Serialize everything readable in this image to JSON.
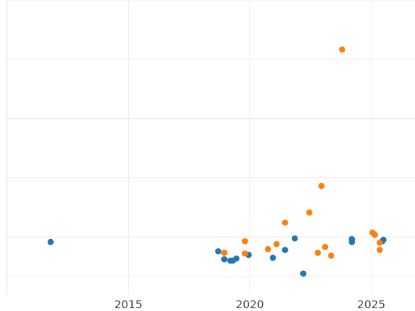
{
  "chart_data": {
    "type": "scatter",
    "title": "",
    "xlabel": "",
    "ylabel": "",
    "xlim": [
      2010.0,
      2026.8
    ],
    "ylim": [
      0,
      410
    ],
    "x_ticks": [
      {
        "value": 2015,
        "label": "2015"
      },
      {
        "value": 2020,
        "label": "2020"
      },
      {
        "value": 2025,
        "label": "2025"
      }
    ],
    "y_gridlines": [
      25,
      80,
      163,
      245,
      328,
      410
    ],
    "grid": true,
    "legend": "none",
    "series": [
      {
        "color": "#1f77b4",
        "points": [
          {
            "x": 2011.8,
            "y": 73
          },
          {
            "x": 2018.7,
            "y": 60
          },
          {
            "x": 2018.95,
            "y": 49
          },
          {
            "x": 2019.2,
            "y": 47
          },
          {
            "x": 2019.3,
            "y": 47
          },
          {
            "x": 2019.45,
            "y": 50
          },
          {
            "x": 2019.95,
            "y": 55
          },
          {
            "x": 2020.95,
            "y": 51
          },
          {
            "x": 2021.45,
            "y": 62
          },
          {
            "x": 2021.85,
            "y": 78
          },
          {
            "x": 2022.2,
            "y": 29
          },
          {
            "x": 2024.2,
            "y": 73
          },
          {
            "x": 2024.2,
            "y": 77
          },
          {
            "x": 2025.45,
            "y": 74
          },
          {
            "x": 2025.5,
            "y": 76
          }
        ]
      },
      {
        "color": "#ff7f0e",
        "points": [
          {
            "x": 2018.95,
            "y": 58
          },
          {
            "x": 2019.8,
            "y": 57
          },
          {
            "x": 2019.8,
            "y": 74
          },
          {
            "x": 2020.75,
            "y": 63
          },
          {
            "x": 2021.1,
            "y": 70
          },
          {
            "x": 2021.45,
            "y": 100
          },
          {
            "x": 2022.45,
            "y": 114
          },
          {
            "x": 2022.8,
            "y": 58
          },
          {
            "x": 2022.95,
            "y": 151
          },
          {
            "x": 2023.1,
            "y": 66
          },
          {
            "x": 2023.35,
            "y": 54
          },
          {
            "x": 2023.8,
            "y": 341
          },
          {
            "x": 2025.05,
            "y": 86
          },
          {
            "x": 2025.15,
            "y": 83
          },
          {
            "x": 2025.35,
            "y": 72
          },
          {
            "x": 2025.35,
            "y": 62
          }
        ]
      }
    ]
  }
}
